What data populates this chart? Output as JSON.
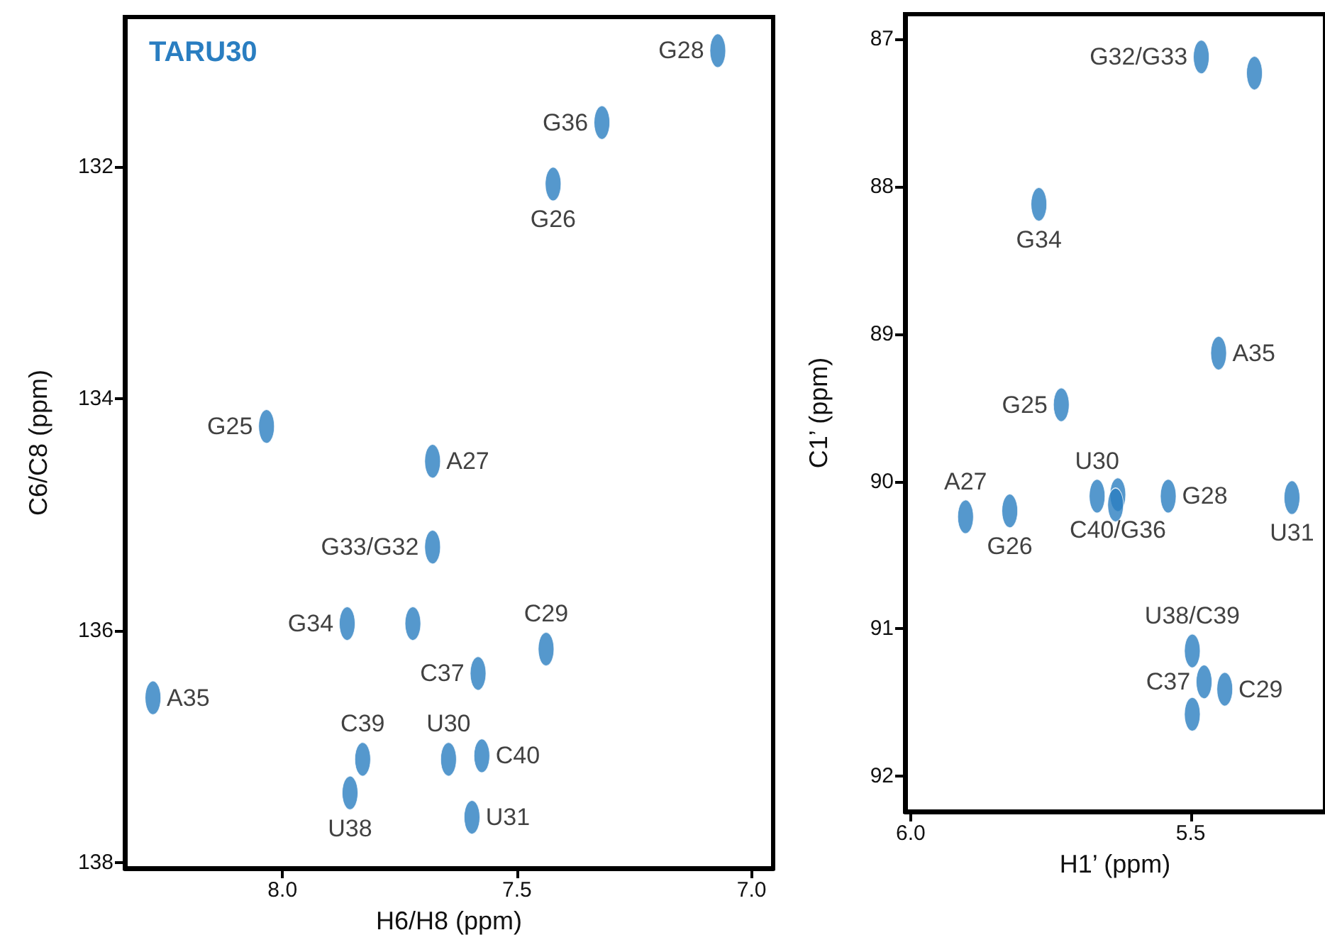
{
  "chart_data": [
    {
      "type": "scatter",
      "title": "TARU30",
      "xlabel": "H6/H8 (ppm)",
      "ylabel": "C6/C8 (ppm)",
      "xlim": [
        8.336,
        6.954
      ],
      "xticks": [
        {
          "value": 8,
          "label": "8.0"
        },
        7.5,
        {
          "value": 7,
          "label": "7.0"
        }
      ],
      "ylim": [
        138.05,
        130.71
      ],
      "yticks": [
        132,
        134,
        136,
        138
      ],
      "marker": "circle",
      "series": [
        {
          "color": "#2a7ec1",
          "x": [
            7.072,
            7.319,
            7.423,
            8.034,
            7.68,
            7.68,
            7.722,
            7.862,
            7.438,
            7.583,
            8.276,
            7.829,
            7.856,
            7.646,
            7.575,
            7.596
          ],
          "values": [
            131.0,
            131.62,
            132.15,
            134.24,
            134.54,
            135.28,
            135.94,
            135.94,
            136.16,
            136.37,
            136.58,
            137.11,
            137.4,
            137.11,
            137.08,
            137.61
          ],
          "value_labels": [
            "G28",
            "G36",
            "G26",
            "G25",
            "A27",
            "G33/G32",
            null,
            "G34",
            "C29",
            "C37",
            "A35",
            "C39",
            "U38",
            "U30",
            "C40",
            "U31"
          ]
        }
      ]
    },
    {
      "type": "scatter",
      "xlabel": "H1’ (ppm)",
      "ylabel": "C1’ (ppm)",
      "xlim": [
        6.01,
        5.26
      ],
      "xticks": [
        {
          "value": 6,
          "label": "6.0"
        },
        5.5
      ],
      "ylim": [
        92.24,
        86.83
      ],
      "yticks": [
        87,
        88,
        89,
        90,
        91,
        92
      ],
      "marker": "circle",
      "series": [
        {
          "color": "#2a7ec1",
          "x": [
            5.481,
            5.386,
            5.771,
            5.45,
            5.731,
            5.667,
            5.63,
            5.634,
            5.823,
            5.902,
            5.54,
            5.319,
            5.497,
            5.497,
            5.476,
            5.439
          ],
          "values": [
            87.12,
            87.23,
            88.12,
            89.13,
            89.48,
            90.1,
            90.09,
            90.16,
            90.2,
            90.24,
            90.1,
            90.11,
            91.15,
            91.58,
            91.36,
            91.41
          ],
          "value_labels": [
            "G32/G33",
            null,
            "G34",
            "A35",
            "G25",
            "U30",
            "C40/G36",
            null,
            "G26",
            "A27",
            "G28",
            "U31",
            "U38/C39",
            null,
            "C37",
            "C29"
          ]
        }
      ]
    }
  ]
}
